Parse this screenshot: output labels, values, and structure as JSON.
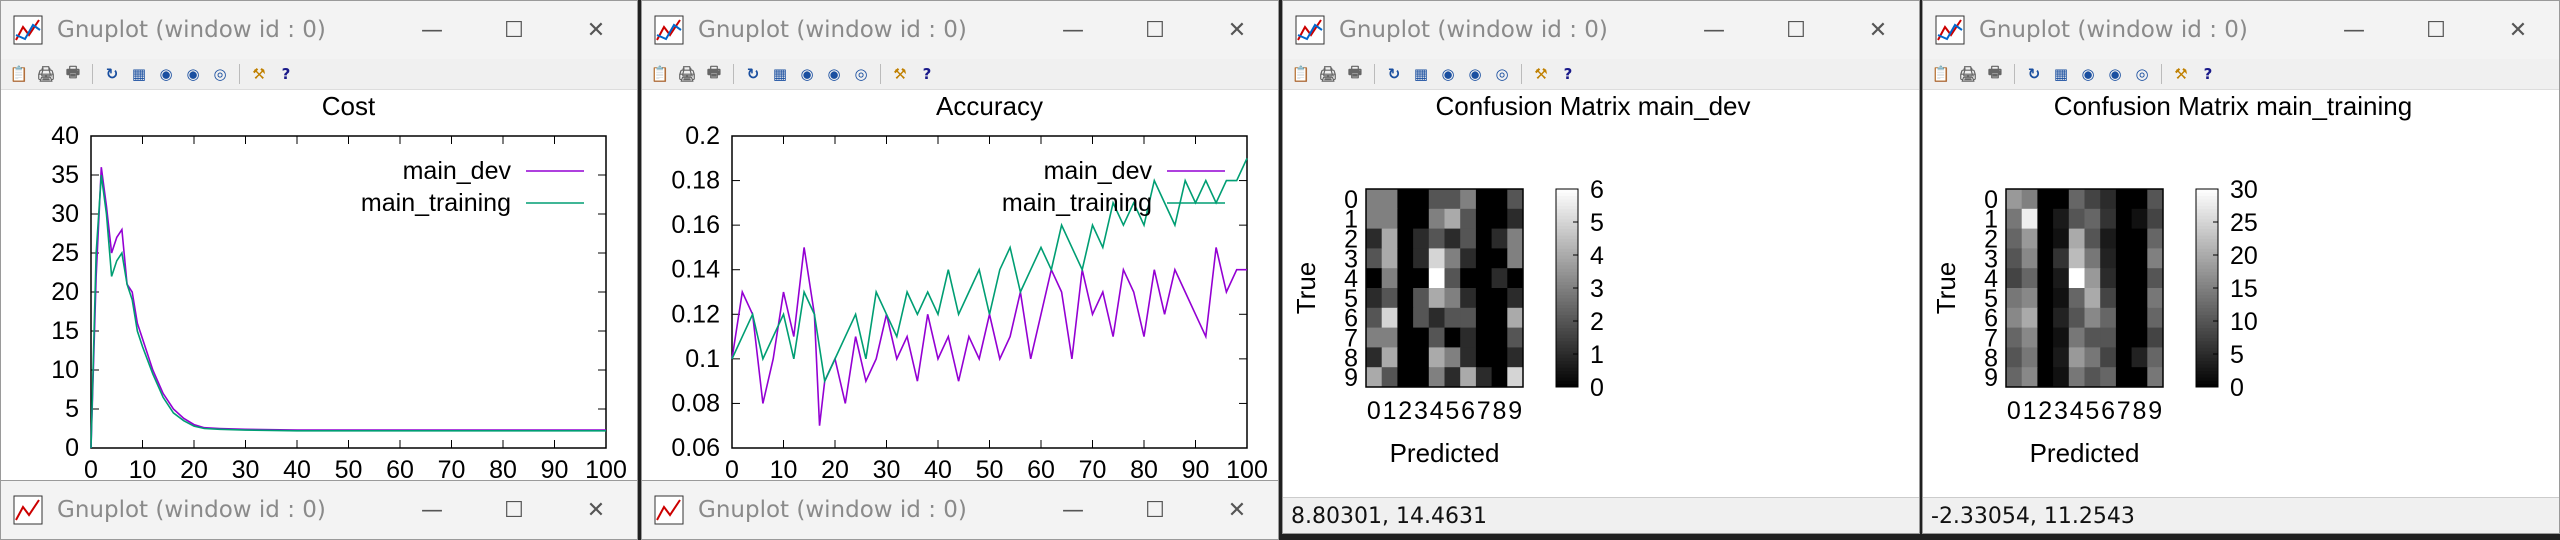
{
  "windows": [
    {
      "title": "Gnuplot (window id : 0)",
      "chart_data": {
        "type": "line",
        "title": "Cost",
        "xlabel": "",
        "ylabel": "",
        "xlim": [
          0,
          100
        ],
        "ylim": [
          0,
          40
        ],
        "xticks": [
          "0",
          "10",
          "20",
          "30",
          "40",
          "50",
          "60",
          "70",
          "80",
          "90",
          "100"
        ],
        "yticks": [
          "0",
          "5",
          "10",
          "15",
          "20",
          "25",
          "30",
          "35",
          "40"
        ],
        "legend_position": "top-right",
        "series": [
          {
            "name": "main_dev",
            "color": "#9400d3",
            "x": [
              0,
              1,
              2,
              3,
              4,
              5,
              6,
              7,
              8,
              9,
              10,
              12,
              14,
              16,
              18,
              20,
              22,
              25,
              30,
              40,
              50,
              60,
              70,
              80,
              90,
              100
            ],
            "y": [
              0,
              22,
              36,
              31,
              25,
              27,
              28,
              21,
              20,
              16,
              14,
              10,
              7,
              5,
              3.8,
              3,
              2.6,
              2.5,
              2.4,
              2.3,
              2.3,
              2.3,
              2.3,
              2.3,
              2.3,
              2.3
            ]
          },
          {
            "name": "main_training",
            "color": "#009e73",
            "x": [
              0,
              1,
              2,
              3,
              4,
              5,
              6,
              7,
              8,
              9,
              10,
              12,
              14,
              16,
              18,
              20,
              22,
              25,
              30,
              40,
              50,
              60,
              70,
              80,
              90,
              100
            ],
            "y": [
              0,
              25,
              35,
              30,
              22,
              24,
              25,
              21,
              19,
              15,
              13,
              9.5,
              6.5,
              4.5,
              3.5,
              2.8,
              2.5,
              2.4,
              2.3,
              2.2,
              2.2,
              2.2,
              2.2,
              2.2,
              2.2,
              2.2
            ]
          }
        ]
      },
      "status": ""
    },
    {
      "title": "Gnuplot (window id : 0)",
      "chart_data": {
        "type": "line",
        "title": "Accuracy",
        "xlabel": "",
        "ylabel": "",
        "xlim": [
          0,
          100
        ],
        "ylim": [
          0.06,
          0.2
        ],
        "xticks": [
          "0",
          "10",
          "20",
          "30",
          "40",
          "50",
          "60",
          "70",
          "80",
          "90",
          "100"
        ],
        "yticks": [
          "0.06",
          "0.08",
          "0.1",
          "0.12",
          "0.14",
          "0.16",
          "0.18",
          "0.2"
        ],
        "legend_position": "top-right",
        "series": [
          {
            "name": "main_dev",
            "color": "#9400d3",
            "x": [
              0,
              2,
              4,
              6,
              8,
              10,
              12,
              14,
              16,
              17,
              18,
              20,
              22,
              24,
              26,
              28,
              30,
              32,
              34,
              36,
              38,
              40,
              42,
              44,
              46,
              48,
              50,
              52,
              54,
              56,
              58,
              60,
              62,
              64,
              66,
              68,
              70,
              72,
              74,
              76,
              78,
              80,
              82,
              84,
              86,
              88,
              90,
              92,
              94,
              96,
              98,
              100
            ],
            "y": [
              0.1,
              0.13,
              0.12,
              0.08,
              0.1,
              0.13,
              0.11,
              0.15,
              0.12,
              0.07,
              0.09,
              0.1,
              0.08,
              0.11,
              0.09,
              0.1,
              0.12,
              0.1,
              0.11,
              0.09,
              0.12,
              0.1,
              0.11,
              0.09,
              0.11,
              0.1,
              0.12,
              0.1,
              0.11,
              0.13,
              0.1,
              0.12,
              0.14,
              0.13,
              0.1,
              0.14,
              0.12,
              0.13,
              0.11,
              0.14,
              0.13,
              0.11,
              0.14,
              0.12,
              0.14,
              0.13,
              0.12,
              0.11,
              0.15,
              0.13,
              0.14,
              0.14
            ]
          },
          {
            "name": "main_training",
            "color": "#009e73",
            "x": [
              0,
              2,
              4,
              6,
              8,
              10,
              12,
              14,
              16,
              18,
              20,
              22,
              24,
              26,
              28,
              30,
              32,
              34,
              36,
              38,
              40,
              42,
              44,
              46,
              48,
              50,
              52,
              54,
              56,
              58,
              60,
              62,
              64,
              66,
              68,
              70,
              72,
              74,
              76,
              78,
              80,
              82,
              84,
              86,
              88,
              90,
              92,
              94,
              96,
              98,
              100
            ],
            "y": [
              0.1,
              0.11,
              0.12,
              0.1,
              0.11,
              0.12,
              0.1,
              0.13,
              0.12,
              0.09,
              0.1,
              0.11,
              0.12,
              0.1,
              0.13,
              0.12,
              0.11,
              0.13,
              0.12,
              0.13,
              0.12,
              0.14,
              0.12,
              0.13,
              0.14,
              0.12,
              0.14,
              0.15,
              0.13,
              0.14,
              0.15,
              0.14,
              0.16,
              0.15,
              0.14,
              0.16,
              0.15,
              0.17,
              0.16,
              0.17,
              0.16,
              0.18,
              0.17,
              0.16,
              0.18,
              0.17,
              0.18,
              0.17,
              0.18,
              0.18,
              0.19
            ]
          }
        ]
      },
      "status": ""
    },
    {
      "title": "Gnuplot (window id : 0)",
      "chart_data": {
        "type": "heatmap",
        "title": "Confusion Matrix main_dev",
        "xlabel": "Predicted",
        "ylabel": "True",
        "x_categories": [
          "0",
          "1",
          "2",
          "3",
          "4",
          "5",
          "6",
          "7",
          "8",
          "9"
        ],
        "y_categories": [
          "0",
          "1",
          "2",
          "3",
          "4",
          "5",
          "6",
          "7",
          "8",
          "9"
        ],
        "cbrange": [
          0,
          6
        ],
        "cbticks": [
          "0",
          "1",
          "2",
          "3",
          "4",
          "5",
          "6"
        ],
        "matrix": [
          [
            3,
            3,
            0,
            0,
            2,
            2,
            3,
            0,
            0,
            2
          ],
          [
            3,
            3,
            0,
            0,
            3,
            4,
            2,
            0,
            0,
            1
          ],
          [
            1,
            4,
            0,
            1,
            2,
            1,
            2,
            0,
            1,
            3
          ],
          [
            2,
            4,
            0,
            1,
            5,
            3,
            1,
            0,
            0,
            3
          ],
          [
            0,
            3,
            0,
            0,
            6,
            2,
            0,
            0,
            1,
            0
          ],
          [
            1,
            2,
            0,
            2,
            4,
            3,
            1,
            0,
            0,
            1
          ],
          [
            2,
            5,
            0,
            2,
            1,
            2,
            2,
            0,
            0,
            4
          ],
          [
            3,
            3,
            0,
            0,
            2,
            0,
            1,
            0,
            0,
            2
          ],
          [
            1,
            4,
            0,
            0,
            4,
            3,
            1,
            0,
            0,
            1
          ],
          [
            4,
            2,
            0,
            0,
            3,
            1,
            4,
            1,
            0,
            5
          ]
        ]
      },
      "status": "8.80301,  14.4631"
    },
    {
      "title": "Gnuplot (window id : 0)",
      "chart_data": {
        "type": "heatmap",
        "title": "Confusion Matrix main_training",
        "xlabel": "Predicted",
        "ylabel": "True",
        "x_categories": [
          "0",
          "1",
          "2",
          "3",
          "4",
          "5",
          "6",
          "7",
          "8",
          "9"
        ],
        "y_categories": [
          "0",
          "1",
          "2",
          "3",
          "4",
          "5",
          "6",
          "7",
          "8",
          "9"
        ],
        "cbrange": [
          0,
          30
        ],
        "cbticks": [
          "0",
          "5",
          "10",
          "15",
          "20",
          "25",
          "30"
        ],
        "matrix": [
          [
            18,
            15,
            0,
            0,
            12,
            8,
            5,
            0,
            0,
            10
          ],
          [
            14,
            28,
            0,
            3,
            10,
            12,
            6,
            0,
            2,
            8
          ],
          [
            12,
            18,
            0,
            2,
            20,
            10,
            3,
            0,
            0,
            12
          ],
          [
            10,
            16,
            0,
            6,
            22,
            14,
            4,
            0,
            0,
            15
          ],
          [
            8,
            12,
            0,
            3,
            30,
            18,
            5,
            0,
            0,
            10
          ],
          [
            14,
            16,
            0,
            2,
            12,
            20,
            8,
            0,
            0,
            14
          ],
          [
            16,
            20,
            0,
            4,
            10,
            16,
            12,
            0,
            0,
            12
          ],
          [
            12,
            16,
            0,
            2,
            14,
            10,
            10,
            0,
            0,
            8
          ],
          [
            10,
            14,
            0,
            3,
            18,
            14,
            8,
            0,
            4,
            12
          ],
          [
            12,
            16,
            0,
            2,
            14,
            10,
            12,
            0,
            0,
            14
          ]
        ]
      },
      "status": "-2.33054,  11.2543"
    }
  ],
  "bottom_windows": [
    {
      "title": "Gnuplot (window id : 0)"
    },
    {
      "title": "Gnuplot (window id : 0)"
    }
  ],
  "icons": [
    "copy-icon",
    "print-preview-icon",
    "print-icon",
    "replot-icon",
    "grid-icon",
    "zoom-prev-icon",
    "zoom-next-icon",
    "autoscale-icon",
    "options-icon",
    "help-icon"
  ]
}
